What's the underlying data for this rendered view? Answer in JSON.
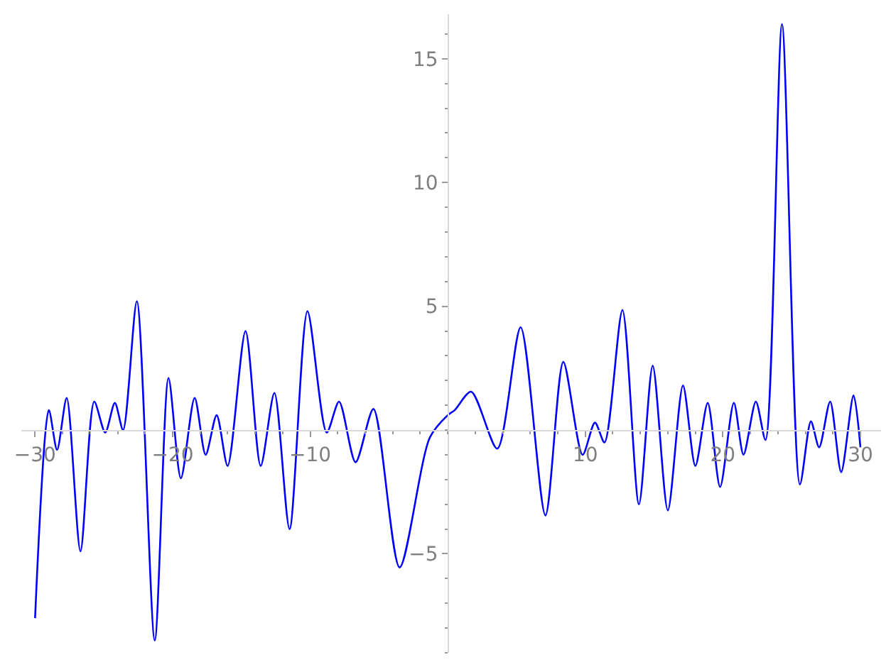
{
  "chart_data": {
    "type": "line",
    "line_style": "solid",
    "marker": "none",
    "x": [
      -30,
      -29.0,
      -28.4,
      -27.7,
      -26.7,
      -25.7,
      -24.9,
      -24.2,
      -23.6,
      -22.6,
      -21.3,
      -20.3,
      -19.4,
      -18.4,
      -17.6,
      -16.8,
      -16.0,
      -14.7,
      -13.6,
      -12.6,
      -11.5,
      -10.2,
      -8.8,
      -7.9,
      -6.7,
      -5.4,
      -3.5,
      -1.3,
      0,
      0.5,
      1.7,
      3.6,
      5.3,
      7.1,
      8.4,
      9.8,
      10.7,
      11.4,
      12.7,
      13.9,
      14.9,
      16.0,
      17.1,
      18.0,
      18.9,
      19.8,
      20.8,
      21.5,
      22.4,
      23.1,
      24.3,
      25.6,
      26.4,
      27.0,
      27.8,
      28.6,
      29.5,
      30
    ],
    "series": [
      {
        "color": "#0000ff",
        "values": [
          -7.6,
          0.8,
          -0.8,
          1.3,
          -4.9,
          1.15,
          -0.1,
          1.1,
          0.0,
          5.2,
          -8.5,
          2.1,
          -1.95,
          1.3,
          -1.0,
          0.6,
          -1.45,
          4.0,
          -1.45,
          1.5,
          -4.0,
          4.8,
          -0.1,
          1.15,
          -1.3,
          0.85,
          -5.55,
          -0.3,
          0.6,
          0.8,
          1.55,
          -0.75,
          4.15,
          -3.45,
          2.75,
          -1.0,
          0.3,
          -0.5,
          4.85,
          -3.0,
          2.6,
          -3.25,
          1.8,
          -1.45,
          1.1,
          -2.3,
          1.1,
          -1.0,
          1.15,
          -0.4,
          16.4,
          -2.2,
          0.35,
          -0.7,
          1.15,
          -1.7,
          1.4,
          -0.7
        ]
      }
    ],
    "xlim": [
      -31,
      31.5
    ],
    "ylim": [
      -9,
      16.8
    ],
    "xticks": [
      -30,
      -20,
      -10,
      10,
      20,
      30
    ],
    "yticks": [
      -5,
      5,
      10,
      15
    ]
  }
}
